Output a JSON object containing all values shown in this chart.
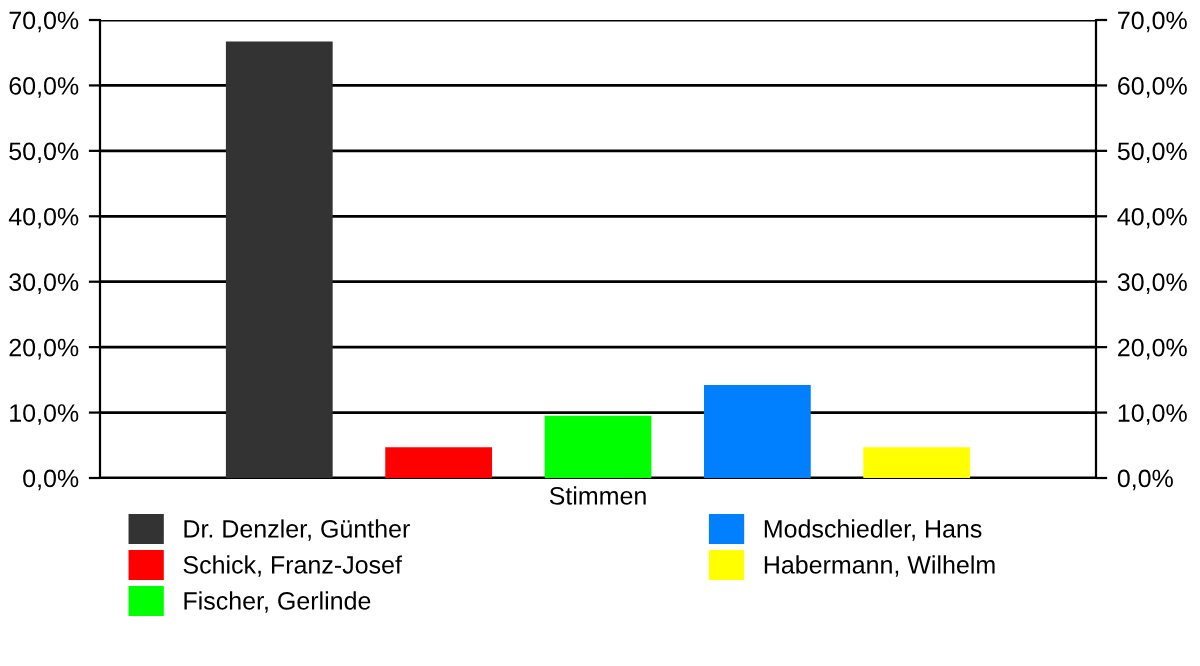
{
  "chart_data": {
    "type": "bar",
    "categories": [
      "Stimmen"
    ],
    "series": [
      {
        "name": "Dr. Denzler, Günther",
        "color": "#333333",
        "values": [
          66.7
        ]
      },
      {
        "name": "Schick, Franz-Josef",
        "color": "#ff0000",
        "values": [
          4.7
        ]
      },
      {
        "name": "Fischer, Gerlinde",
        "color": "#00ff00",
        "values": [
          9.5
        ]
      },
      {
        "name": "Modschiedler, Hans",
        "color": "#0080ff",
        "values": [
          14.2
        ]
      },
      {
        "name": "Habermann, Wilhelm",
        "color": "#ffff00",
        "values": [
          4.7
        ]
      }
    ],
    "ylim": [
      0,
      70
    ],
    "yticks": [
      {
        "value": 0,
        "label": "0,0%"
      },
      {
        "value": 10,
        "label": "10,0%"
      },
      {
        "value": 20,
        "label": "20,0%"
      },
      {
        "value": 30,
        "label": "30,0%"
      },
      {
        "value": 40,
        "label": "40,0%"
      },
      {
        "value": 50,
        "label": "50,0%"
      },
      {
        "value": 60,
        "label": "60,0%"
      },
      {
        "value": 70,
        "label": "70,0%"
      }
    ],
    "grid": "y",
    "legend": "bottom"
  }
}
